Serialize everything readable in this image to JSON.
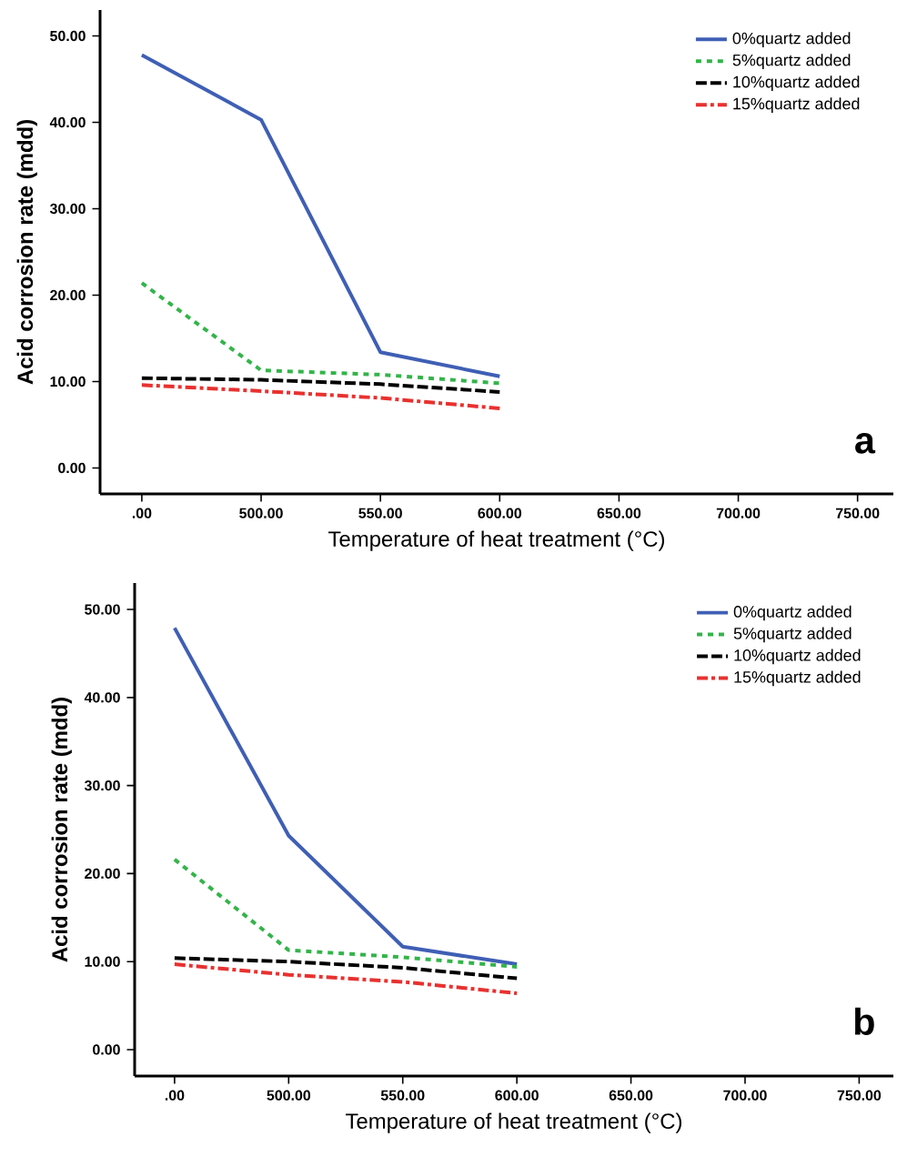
{
  "chart_data": [
    {
      "type": "line",
      "xlabel": "Temperature of heat treatment (°C)",
      "ylabel": "Acid corrosion rate (mdd)",
      "annotations": [
        "a"
      ],
      "categories": [
        ".00",
        "500.00",
        "550.00",
        "600.00",
        "650.00",
        "700.00",
        "750.00"
      ],
      "ylim": [
        -3,
        53
      ],
      "yticks": [
        {
          "value": 0,
          "label": "0.00"
        },
        {
          "value": 10,
          "label": "10.00"
        },
        {
          "value": 20,
          "label": "20.00"
        },
        {
          "value": 30,
          "label": "30.00"
        },
        {
          "value": 40,
          "label": "40.00"
        },
        {
          "value": 50,
          "label": "50.00"
        }
      ],
      "legend": "top right",
      "series": [
        {
          "name": "0%quartz added",
          "color": "#3f5fb5",
          "line_style": "solid",
          "values": [
            47.8,
            40.3,
            13.4,
            10.6,
            null,
            null,
            null
          ]
        },
        {
          "name": "5%quartz added",
          "color": "#33b44a",
          "line_style": "dotted",
          "values": [
            21.4,
            11.3,
            10.8,
            9.8,
            null,
            null,
            null
          ]
        },
        {
          "name": "10%quartz added",
          "color": "#000000",
          "line_style": "dashed",
          "values": [
            10.4,
            10.2,
            9.7,
            8.8,
            null,
            null,
            null
          ]
        },
        {
          "name": "15%quartz added",
          "color": "#e8312f",
          "line_style": "dashdot",
          "values": [
            9.6,
            8.9,
            8.1,
            6.9,
            null,
            null,
            null
          ]
        }
      ]
    },
    {
      "type": "line",
      "xlabel": "Temperature of heat treatment (°C)",
      "ylabel": "Acid corrosion rate (mdd)",
      "annotations": [
        "b"
      ],
      "categories": [
        ".00",
        "500.00",
        "550.00",
        "600.00",
        "650.00",
        "700.00",
        "750.00"
      ],
      "ylim": [
        -3,
        53
      ],
      "yticks": [
        {
          "value": 0,
          "label": "0.00"
        },
        {
          "value": 10,
          "label": "10.00"
        },
        {
          "value": 20,
          "label": "20.00"
        },
        {
          "value": 30,
          "label": "30.00"
        },
        {
          "value": 40,
          "label": "40.00"
        },
        {
          "value": 50,
          "label": "50.00"
        }
      ],
      "legend": "top right",
      "series": [
        {
          "name": "0%quartz added",
          "color": "#3f5fb5",
          "line_style": "solid",
          "values": [
            47.9,
            24.3,
            11.7,
            9.7,
            null,
            null,
            null
          ]
        },
        {
          "name": "5%quartz added",
          "color": "#33b44a",
          "line_style": "dotted",
          "values": [
            21.6,
            11.3,
            10.5,
            9.4,
            null,
            null,
            null
          ]
        },
        {
          "name": "10%quartz added",
          "color": "#000000",
          "line_style": "dashed",
          "values": [
            10.4,
            10.0,
            9.3,
            8.1,
            null,
            null,
            null
          ]
        },
        {
          "name": "15%quartz added",
          "color": "#e8312f",
          "line_style": "dashdot",
          "values": [
            9.7,
            8.5,
            7.7,
            6.4,
            null,
            null,
            null
          ]
        }
      ]
    }
  ]
}
